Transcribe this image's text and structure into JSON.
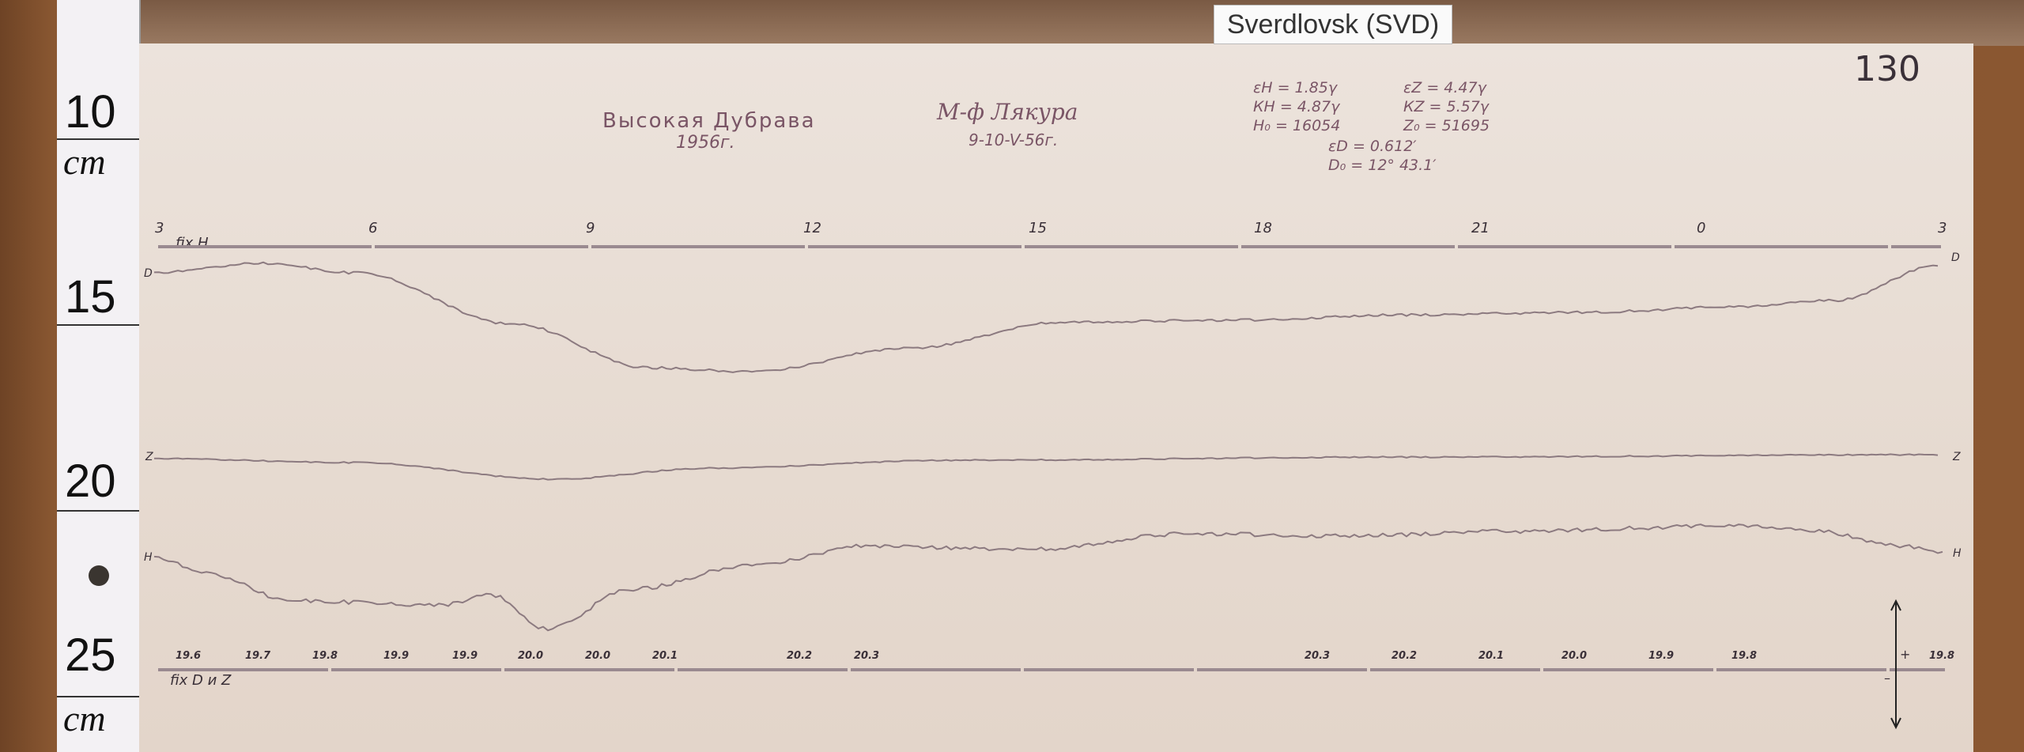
{
  "label": "Sverdlovsk (SVD)",
  "sheet_number": "130",
  "station": {
    "name": "Высокая Дубрава",
    "year": "1956г."
  },
  "observer": {
    "name": "М-ф Лякура",
    "date": "9-10-V-56г."
  },
  "parameters": {
    "eps_h": "εН = 1.85γ",
    "eps_z": "εZ = 4.47γ",
    "k_h": "КН = 4.87γ",
    "k_z": "КZ = 5.57γ",
    "h0": "Н₀ = 16054",
    "z0": "Z₀ = 51695",
    "eps_d": "εD = 0.612′",
    "d0": "D₀ = 12° 43.1′"
  },
  "ruler": {
    "marks": [
      "10",
      "15",
      "20",
      "25"
    ],
    "unit": "cm"
  },
  "time_labels": [
    "3",
    "6",
    "9",
    "12",
    "15",
    "18",
    "21",
    "0",
    "3"
  ],
  "baseline_labels": {
    "top": "fix H",
    "bottom": "fix D и Z"
  },
  "trace_labels": {
    "d_left": "D",
    "d_right": "D",
    "z_left": "Z",
    "z_right": "Z",
    "h_left": "H",
    "h_right": "H"
  },
  "temperature_labels": [
    "19.6",
    "19.7",
    "19.8",
    "19.9",
    "19.9",
    "20.0",
    "20.0",
    "20.1",
    "20.2",
    "20.3",
    "20.3",
    "20.2",
    "20.1",
    "20.0",
    "19.9",
    "19.8",
    "19.8"
  ],
  "arrow_signs": {
    "plus": "+",
    "minus": "–"
  },
  "colors": {
    "trace": "#8c7a80",
    "ink": "#7a5566",
    "paper": "#e8dcd2"
  }
}
